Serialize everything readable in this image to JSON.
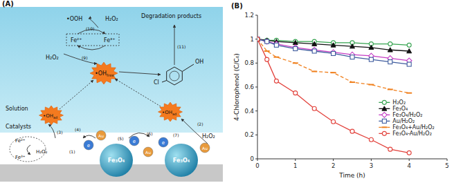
{
  "diagram": {
    "panel_label": "(A)",
    "labels": [
      {
        "text": "•OOH"
      },
      {
        "text": "H₂O₂"
      },
      {
        "text": "Fe²⁺"
      },
      {
        "text": "Fe³⁺"
      },
      {
        "text": "(10)"
      },
      {
        "text": "(9)"
      },
      {
        "text": "H₂O₂"
      },
      {
        "text": "Degradation products"
      },
      {
        "text": "(11)"
      },
      {
        "text": "•OH",
        "sub": "free"
      },
      {
        "text": "Cl"
      },
      {
        "text": "OH"
      },
      {
        "text": "Solution"
      },
      {
        "text": "Catalysts"
      },
      {
        "text": "•OH",
        "sub": "ad"
      },
      {
        "text": "•OH",
        "sub": "ad"
      },
      {
        "text": "Fe²⁺"
      },
      {
        "text": "Fe³⁺"
      },
      {
        "text": "H₂O₂"
      },
      {
        "text": "(3)"
      },
      {
        "text": "(2)"
      },
      {
        "text": "H₂O₂"
      },
      {
        "text": "Fe₃O₄"
      },
      {
        "text": "Fe₃O₄"
      },
      {
        "text": "(1)"
      },
      {
        "text": "(4)"
      },
      {
        "text": "(5)"
      },
      {
        "text": "(6)"
      },
      {
        "text": "(7)"
      }
    ],
    "particles": [
      "e",
      "Au",
      "e",
      "Au",
      "e",
      "Au"
    ]
  },
  "chart_data": {
    "type": "line",
    "title": "(B)",
    "x_label": "Time (h)",
    "y_label": "4-Chlorophenol (C/C₀)",
    "x": [
      0,
      0.25,
      0.5,
      1,
      1.5,
      2,
      2.5,
      3,
      3.5,
      4
    ],
    "xlim": [
      0,
      5
    ],
    "xticks": [
      0,
      1,
      2,
      3,
      4,
      5
    ],
    "ylim": [
      0,
      1.2
    ],
    "yticks": [
      0,
      0.2,
      0.4,
      0.6,
      0.8,
      1,
      1.2
    ],
    "grid": false,
    "legend": "right",
    "series": [
      {
        "name": "H₂O₂",
        "color": "#35a34f",
        "marker": "circle",
        "line_style": "solid",
        "values": [
          1,
          0.99,
          0.99,
          0.98,
          0.98,
          0.97,
          0.97,
          0.96,
          0.96,
          0.95
        ]
      },
      {
        "name": "Fe₃O₄",
        "color": "#111111",
        "marker": "triangle",
        "line_style": "solid",
        "values": [
          1,
          0.99,
          0.98,
          0.97,
          0.96,
          0.95,
          0.94,
          0.93,
          0.91,
          0.9
        ]
      },
      {
        "name": "Fe₃O₄/H₂O₂",
        "color": "#c43cc4",
        "marker": "diamond",
        "line_style": "solid",
        "values": [
          1,
          0.98,
          0.96,
          0.93,
          0.91,
          0.89,
          0.87,
          0.86,
          0.84,
          0.82
        ]
      },
      {
        "name": "Au/H₂O₂",
        "color": "#3f5c9e",
        "marker": "square",
        "line_style": "solid",
        "values": [
          1,
          0.98,
          0.95,
          0.92,
          0.9,
          0.88,
          0.85,
          0.83,
          0.81,
          0.79
        ]
      },
      {
        "name": "Fe₃O₄+Au/H₂O₂",
        "color": "#f0801e",
        "marker": "dash",
        "line_style": "dashed",
        "values": [
          1,
          0.9,
          0.85,
          0.8,
          0.73,
          0.72,
          0.64,
          0.62,
          0.58,
          0.55
        ]
      },
      {
        "name": "Fe₃O₄-Au/H₂O₂",
        "color": "#e2403a",
        "marker": "circle",
        "line_style": "solid",
        "values": [
          1,
          0.83,
          0.65,
          0.55,
          0.42,
          0.31,
          0.23,
          0.16,
          0.08,
          0.05
        ]
      }
    ]
  }
}
